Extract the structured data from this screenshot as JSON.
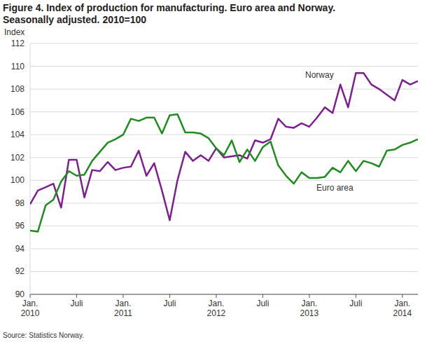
{
  "chart_data": {
    "type": "line",
    "title": "Figure 4. Index of production for manufacturing. Euro area and Norway.",
    "subtitle": "Seasonally adjusted. 2010=100",
    "y_label": "Index",
    "source": "Source: Statistics Norway.",
    "categories": [
      "Jan. 2010",
      null,
      null,
      null,
      null,
      null,
      "Juli",
      null,
      null,
      null,
      null,
      null,
      "Jan. 2011",
      null,
      null,
      null,
      null,
      null,
      "Juli",
      null,
      null,
      null,
      null,
      null,
      "Jan. 2012",
      null,
      null,
      null,
      null,
      null,
      "Juli",
      null,
      null,
      null,
      null,
      null,
      "Jan. 2013",
      null,
      null,
      null,
      null,
      null,
      "Juli",
      null,
      null,
      null,
      null,
      null,
      "Jan. 2014",
      null,
      null
    ],
    "series": [
      {
        "name": "Norway",
        "color": "#7d1f8e",
        "values": [
          97.9,
          99.1,
          99.4,
          99.7,
          97.6,
          101.8,
          101.8,
          98.5,
          100.9,
          100.8,
          101.6,
          100.9,
          101.1,
          101.2,
          102.6,
          100.4,
          101.5,
          99.1,
          96.5,
          100.0,
          102.5,
          101.7,
          102.2,
          101.7,
          102.8,
          102.0,
          102.1,
          102.2,
          101.9,
          103.5,
          103.3,
          103.6,
          105.4,
          104.7,
          104.6,
          105.0,
          104.7,
          105.5,
          106.4,
          105.9,
          108.4,
          106.4,
          109.4,
          109.4,
          108.4,
          108.0,
          107.5,
          107.0,
          108.8,
          108.4,
          108.7
        ]
      },
      {
        "name": "Euro area",
        "color": "#1e8c1e",
        "values": [
          95.6,
          95.5,
          97.8,
          98.3,
          99.9,
          100.8,
          100.4,
          100.5,
          101.7,
          102.5,
          103.3,
          103.6,
          104.0,
          105.4,
          105.2,
          105.5,
          105.5,
          104.1,
          105.7,
          105.8,
          104.2,
          104.2,
          104.1,
          103.7,
          102.8,
          102.2,
          103.5,
          101.6,
          102.7,
          101.7,
          102.9,
          103.4,
          101.3,
          100.4,
          99.7,
          100.7,
          100.2,
          100.2,
          100.3,
          101.1,
          100.7,
          101.7,
          100.8,
          101.7,
          101.5,
          101.2,
          102.6,
          102.7,
          103.1,
          103.3,
          103.6
        ]
      }
    ],
    "ylim": [
      90,
      112
    ],
    "yticks": [
      90,
      92,
      94,
      96,
      98,
      100,
      102,
      104,
      106,
      108,
      110,
      112
    ],
    "grid": true
  }
}
